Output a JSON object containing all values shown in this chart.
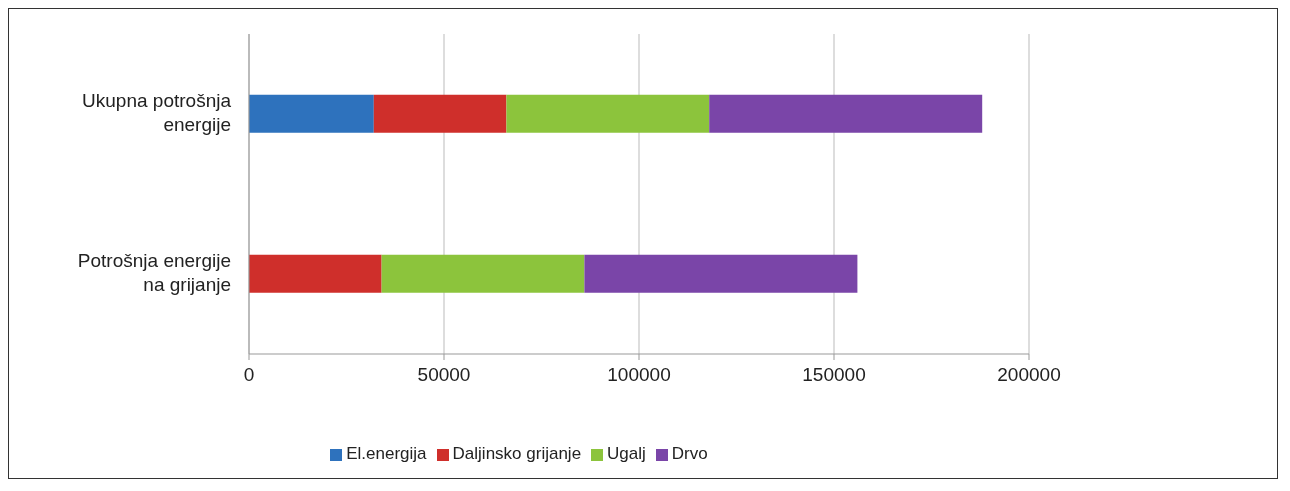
{
  "chart_data": {
    "type": "bar",
    "orientation": "horizontal",
    "stacked": true,
    "categories": [
      "Ukupna potrošnja energije",
      "Potrošnja energije na grijanje"
    ],
    "series": [
      {
        "name": "El.energija",
        "color": "#2e72bd",
        "values": [
          32000,
          0
        ]
      },
      {
        "name": "Daljinsko grijanje",
        "color": "#cf2f2b",
        "values": [
          34000,
          34000
        ]
      },
      {
        "name": "Ugalj",
        "color": "#8cc43c",
        "values": [
          52000,
          52000
        ]
      },
      {
        "name": "Drvo",
        "color": "#7a45a8",
        "values": [
          70000,
          70000
        ]
      }
    ],
    "xlim": [
      0,
      200000
    ],
    "xticks": [
      0,
      50000,
      100000,
      150000,
      200000
    ],
    "grid": "x",
    "legend": "bottom"
  }
}
